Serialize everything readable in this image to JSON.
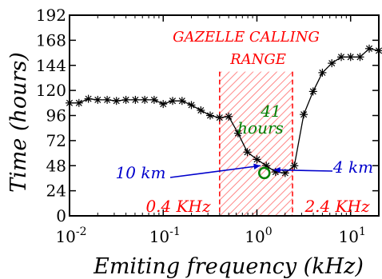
{
  "chart_data": {
    "type": "line",
    "xlabel": "Emiting frequency (kHz)",
    "ylabel": "Time (hours)",
    "xscale": "log",
    "xlim": [
      0.01,
      20
    ],
    "ylim": [
      0,
      192
    ],
    "xticks": [
      {
        "value": 0.01,
        "base": "10",
        "exp": "-2"
      },
      {
        "value": 0.1,
        "base": "10",
        "exp": "-1"
      },
      {
        "value": 1,
        "base": "10",
        "exp": "0"
      },
      {
        "value": 10,
        "base": "10",
        "exp": "1"
      }
    ],
    "yticks": [
      0,
      24,
      48,
      72,
      96,
      120,
      144,
      168,
      192
    ],
    "series": [
      {
        "color": "#000000",
        "marker": "asterisk",
        "x": [
          0.01,
          0.0126,
          0.0159,
          0.02,
          0.0252,
          0.0317,
          0.04,
          0.0504,
          0.0635,
          0.08,
          0.1,
          0.126,
          0.159,
          0.2,
          0.252,
          0.317,
          0.4,
          0.5,
          0.63,
          0.79,
          1.0,
          1.26,
          1.58,
          2.0,
          2.51,
          3.16,
          3.98,
          5.0,
          6.3,
          7.94,
          10.0,
          12.6,
          15.8,
          20.0
        ],
        "y": [
          108,
          108,
          112,
          111,
          111,
          110,
          111,
          111,
          111,
          111,
          107,
          110,
          110,
          106,
          101,
          96,
          94,
          95,
          79,
          61,
          54,
          48,
          42,
          41,
          48,
          97,
          119,
          137,
          146,
          152,
          152,
          152,
          160,
          158
        ]
      }
    ],
    "region": {
      "x_start": 0.4,
      "x_end": 2.4,
      "y_top": 138,
      "color": "#ff0000",
      "fill": "hatched"
    },
    "region_label": [
      "GAZELLE CALLING",
      "RANGE"
    ],
    "lower_label": "0.4 KHz",
    "upper_label": "2.4 KHz",
    "highlight": {
      "x": 1.2,
      "y": 41,
      "color": "#008000",
      "label_value": "41",
      "label_unit": "hours"
    },
    "annotations": [
      {
        "text": "10 km",
        "color": "#0000cc",
        "x": 1.09,
        "y": 48
      },
      {
        "text": "4 km",
        "color": "#0000cc",
        "x": 1.51,
        "y": 44
      }
    ]
  }
}
